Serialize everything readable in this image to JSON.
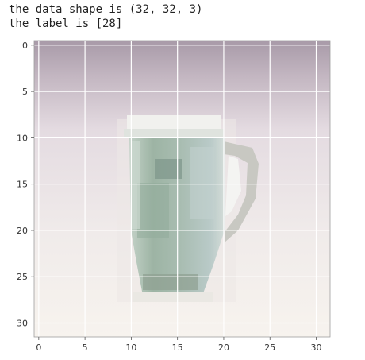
{
  "output": {
    "line1": "the data shape is (32, 32, 3)",
    "line2": "the label is [28]"
  },
  "image_plot": {
    "content": "cup-image",
    "x_ticks": [
      "0",
      "5",
      "10",
      "15",
      "20",
      "25",
      "30"
    ],
    "y_ticks": [
      "0",
      "5",
      "10",
      "15",
      "20",
      "25",
      "30"
    ],
    "grid": true,
    "axis_range": [
      0,
      32
    ],
    "colors": {
      "background_top": "#a99ba9",
      "background_mid": "#e5dde2",
      "background_bottom": "#f6f2ee",
      "cup_body": "#a7bcb1",
      "cup_shadow": "#7f9588",
      "cup_rim": "#eeeeea",
      "cup_handle": "#c9c9c4",
      "grid": "#ffffff"
    }
  }
}
